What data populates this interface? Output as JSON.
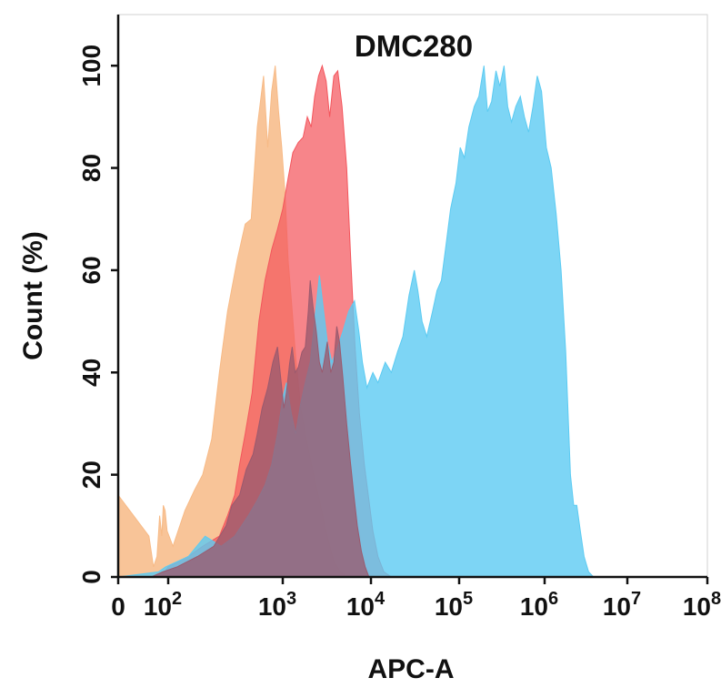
{
  "chart_data": {
    "type": "area",
    "title": "DMC280",
    "xlabel": "APC-A",
    "ylabel": "Count  (%)",
    "x_scale": "log",
    "xlim": [
      0,
      100000000
    ],
    "ylim": [
      0,
      110
    ],
    "x_ticks": [
      {
        "value": 0,
        "base": "0",
        "exp": ""
      },
      {
        "value": 100,
        "base": "10",
        "exp": "2"
      },
      {
        "value": 1000,
        "base": "10",
        "exp": "3"
      },
      {
        "value": 10000,
        "base": "10",
        "exp": "4"
      },
      {
        "value": 100000,
        "base": "10",
        "exp": "5"
      },
      {
        "value": 1000000,
        "base": "10",
        "exp": "6"
      },
      {
        "value": 10000000,
        "base": "10",
        "exp": "7"
      },
      {
        "value": 100000000,
        "base": "10",
        "exp": "8"
      }
    ],
    "y_ticks": [
      0,
      20,
      40,
      60,
      80,
      100
    ],
    "grid": false,
    "legend": "none",
    "series": [
      {
        "color": "#f7ba86",
        "points": [
          [
            0,
            16
          ],
          [
            16,
            8
          ],
          [
            25,
            2
          ],
          [
            35,
            4
          ],
          [
            45,
            12
          ],
          [
            55,
            8
          ],
          [
            63,
            14
          ],
          [
            75,
            13
          ],
          [
            90,
            9
          ],
          [
            110,
            6
          ],
          [
            140,
            13
          ],
          [
            170,
            17
          ],
          [
            200,
            20
          ],
          [
            240,
            27
          ],
          [
            280,
            40
          ],
          [
            330,
            52
          ],
          [
            400,
            62
          ],
          [
            470,
            69
          ],
          [
            530,
            70
          ],
          [
            600,
            88
          ],
          [
            680,
            98
          ],
          [
            740,
            84
          ],
          [
            800,
            95
          ],
          [
            860,
            100
          ],
          [
            920,
            91
          ],
          [
            980,
            84
          ],
          [
            1060,
            75
          ],
          [
            1150,
            62
          ],
          [
            1280,
            52
          ],
          [
            1400,
            43
          ],
          [
            1600,
            33
          ],
          [
            1800,
            28
          ],
          [
            2000,
            24
          ],
          [
            2300,
            19
          ],
          [
            2600,
            15
          ],
          [
            3000,
            10
          ],
          [
            3400,
            6
          ],
          [
            3800,
            3
          ],
          [
            4500,
            1
          ],
          [
            5500,
            0
          ]
        ]
      },
      {
        "color": "#f4565d",
        "points": [
          [
            20,
            0
          ],
          [
            50,
            0
          ],
          [
            100,
            2
          ],
          [
            150,
            4
          ],
          [
            200,
            6
          ],
          [
            280,
            8
          ],
          [
            330,
            12
          ],
          [
            380,
            16
          ],
          [
            420,
            22
          ],
          [
            470,
            28
          ],
          [
            540,
            36
          ],
          [
            620,
            50
          ],
          [
            700,
            58
          ],
          [
            800,
            64
          ],
          [
            900,
            68
          ],
          [
            1000,
            72
          ],
          [
            1150,
            78
          ],
          [
            1300,
            83
          ],
          [
            1500,
            85
          ],
          [
            1700,
            86
          ],
          [
            1900,
            90
          ],
          [
            2100,
            88
          ],
          [
            2300,
            94
          ],
          [
            2550,
            98
          ],
          [
            2800,
            100
          ],
          [
            3100,
            97
          ],
          [
            3400,
            90
          ],
          [
            3800,
            98
          ],
          [
            4200,
            99
          ],
          [
            4700,
            92
          ],
          [
            5300,
            80
          ],
          [
            5900,
            62
          ],
          [
            6600,
            45
          ],
          [
            7400,
            32
          ],
          [
            8400,
            22
          ],
          [
            9500,
            15
          ],
          [
            10500,
            9
          ],
          [
            12000,
            4
          ],
          [
            14000,
            1
          ],
          [
            17000,
            0
          ]
        ]
      },
      {
        "color": "#5ccbf2",
        "points": [
          [
            0,
            0
          ],
          [
            40,
            1
          ],
          [
            80,
            2
          ],
          [
            150,
            4
          ],
          [
            210,
            8
          ],
          [
            290,
            6
          ],
          [
            380,
            8
          ],
          [
            500,
            12
          ],
          [
            600,
            15
          ],
          [
            700,
            18
          ],
          [
            800,
            22
          ],
          [
            900,
            28
          ],
          [
            1000,
            35
          ],
          [
            1100,
            38
          ],
          [
            1250,
            32
          ],
          [
            1400,
            28
          ],
          [
            1600,
            34
          ],
          [
            1800,
            38
          ],
          [
            2050,
            42
          ],
          [
            2300,
            50
          ],
          [
            2600,
            59
          ],
          [
            2900,
            52
          ],
          [
            3200,
            46
          ],
          [
            3600,
            42
          ],
          [
            4200,
            45
          ],
          [
            4800,
            48
          ],
          [
            5600,
            52
          ],
          [
            6500,
            54
          ],
          [
            7300,
            48
          ],
          [
            8000,
            42
          ],
          [
            9000,
            37
          ],
          [
            10500,
            40
          ],
          [
            12000,
            38
          ],
          [
            14500,
            42
          ],
          [
            17000,
            40
          ],
          [
            20000,
            44
          ],
          [
            23000,
            47
          ],
          [
            27000,
            55
          ],
          [
            31000,
            60
          ],
          [
            34000,
            56
          ],
          [
            38000,
            50
          ],
          [
            43000,
            47
          ],
          [
            50000,
            52
          ],
          [
            56000,
            56
          ],
          [
            63000,
            58
          ],
          [
            71000,
            65
          ],
          [
            80000,
            72
          ],
          [
            92000,
            77
          ],
          [
            103000,
            84
          ],
          [
            115000,
            82
          ],
          [
            130000,
            88
          ],
          [
            150000,
            92
          ],
          [
            170000,
            94
          ],
          [
            195000,
            100
          ],
          [
            215000,
            91
          ],
          [
            240000,
            93
          ],
          [
            270000,
            99
          ],
          [
            300000,
            96
          ],
          [
            335000,
            100
          ],
          [
            370000,
            92
          ],
          [
            410000,
            89
          ],
          [
            460000,
            92
          ],
          [
            520000,
            94
          ],
          [
            580000,
            90
          ],
          [
            650000,
            87
          ],
          [
            730000,
            92
          ],
          [
            820000,
            98
          ],
          [
            920000,
            95
          ],
          [
            1050000,
            84
          ],
          [
            1200000,
            80
          ],
          [
            1380000,
            71
          ],
          [
            1580000,
            60
          ],
          [
            1800000,
            44
          ],
          [
            2050000,
            20
          ],
          [
            2250000,
            14
          ],
          [
            2450000,
            14
          ],
          [
            2700000,
            9
          ],
          [
            3000000,
            4
          ],
          [
            3400000,
            1
          ],
          [
            3900000,
            0
          ]
        ]
      },
      {
        "color": "#9a5a6e",
        "points": [
          [
            20,
            0
          ],
          [
            60,
            1
          ],
          [
            120,
            2
          ],
          [
            180,
            4
          ],
          [
            250,
            6
          ],
          [
            320,
            10
          ],
          [
            360,
            14
          ],
          [
            420,
            16
          ],
          [
            480,
            21
          ],
          [
            550,
            24
          ],
          [
            600,
            28
          ],
          [
            660,
            33
          ],
          [
            740,
            37
          ],
          [
            820,
            42
          ],
          [
            900,
            45
          ],
          [
            970,
            38
          ],
          [
            1030,
            33
          ],
          [
            1100,
            36
          ],
          [
            1200,
            42
          ],
          [
            1280,
            45
          ],
          [
            1380,
            40
          ],
          [
            1500,
            41
          ],
          [
            1650,
            44
          ],
          [
            1800,
            45
          ],
          [
            1950,
            52
          ],
          [
            2050,
            58
          ],
          [
            2200,
            53
          ],
          [
            2400,
            48
          ],
          [
            2600,
            42
          ],
          [
            2800,
            40
          ],
          [
            3000,
            43
          ],
          [
            3200,
            46
          ],
          [
            3500,
            40
          ],
          [
            3800,
            42
          ],
          [
            4100,
            49
          ],
          [
            4400,
            46
          ],
          [
            4800,
            39
          ],
          [
            5300,
            30
          ],
          [
            5800,
            23
          ],
          [
            6400,
            16
          ],
          [
            7000,
            10
          ],
          [
            7800,
            5
          ],
          [
            8600,
            2
          ],
          [
            9500,
            0
          ]
        ]
      }
    ]
  }
}
